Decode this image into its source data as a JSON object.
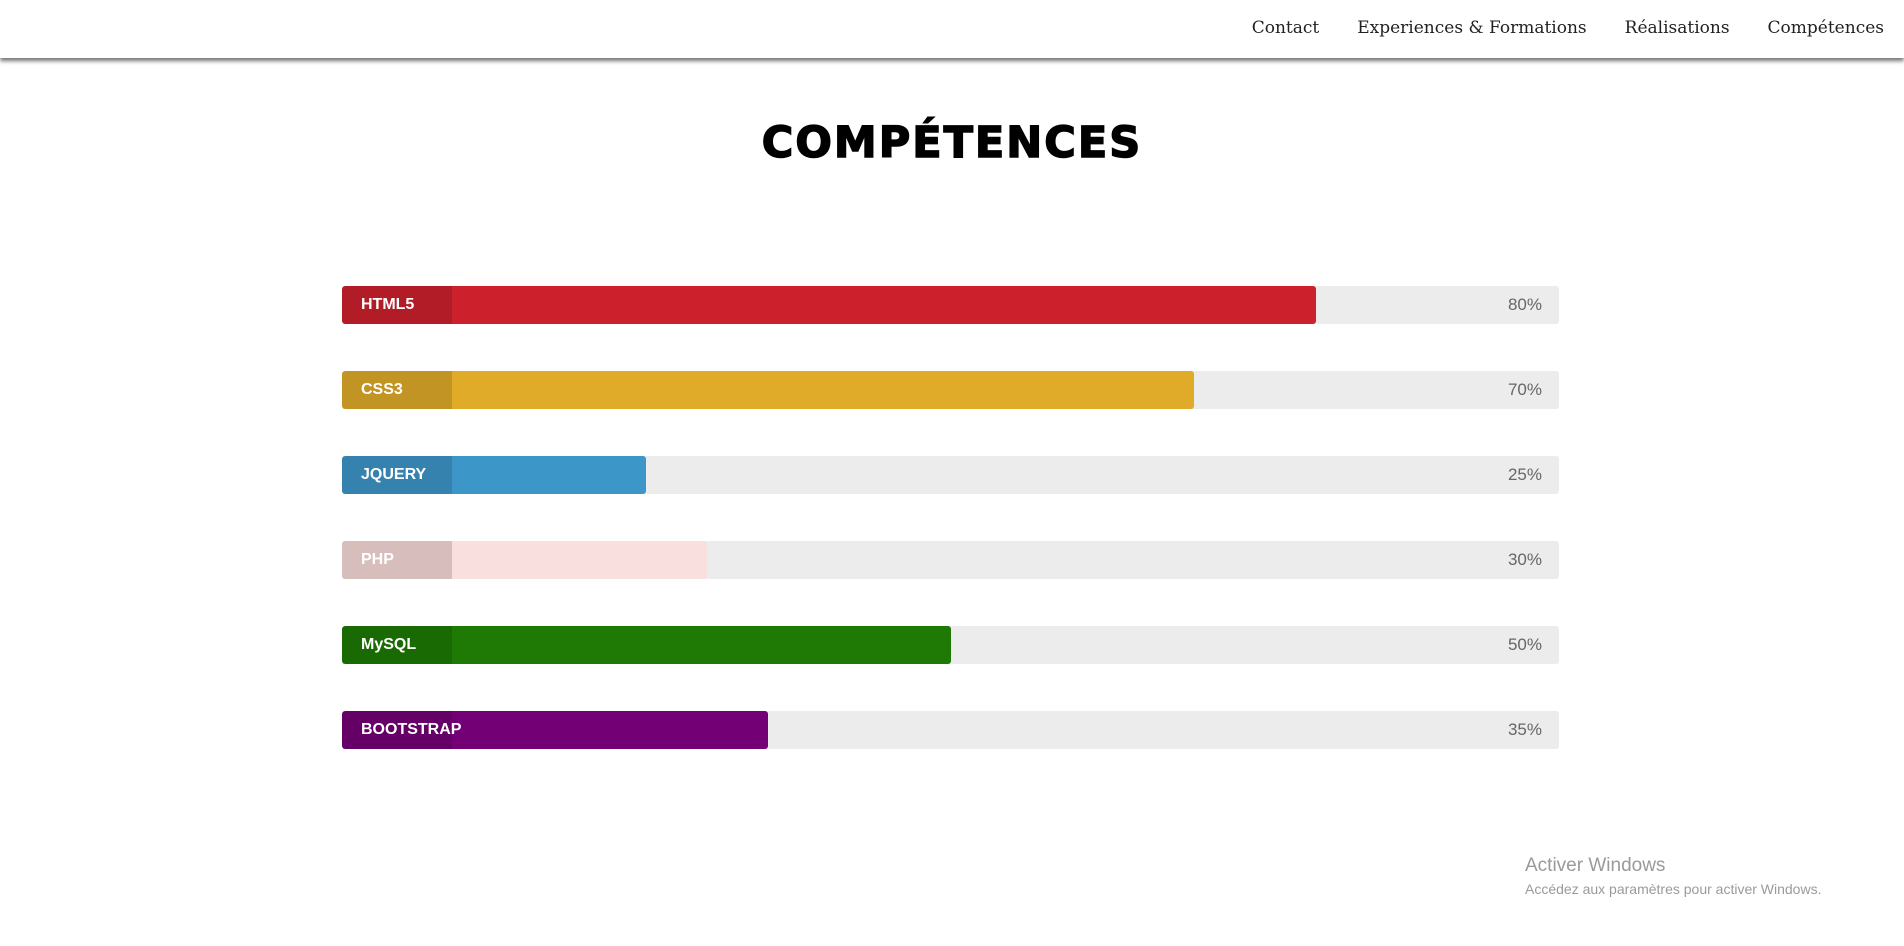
{
  "nav": {
    "links": [
      "Contact",
      "Experiences & Formations",
      "Réalisations",
      "Compétences"
    ]
  },
  "page": {
    "title": "COMPÉTENCES"
  },
  "skills": [
    {
      "name": "HTML5",
      "percent_label": "80%",
      "level": 0.8,
      "color": "#cc212c"
    },
    {
      "name": "CSS3",
      "percent_label": "70%",
      "level": 0.7,
      "color": "#dfab29"
    },
    {
      "name": "JQUERY",
      "percent_label": "25%",
      "level": 0.25,
      "color": "#3d96c8"
    },
    {
      "name": "PHP",
      "percent_label": "30%",
      "level": 0.3,
      "color": "#f9dfdd"
    },
    {
      "name": "MySQL",
      "percent_label": "50%",
      "level": 0.5,
      "color": "#1e7a04"
    },
    {
      "name": "BOOTSTRAP",
      "percent_label": "35%",
      "level": 0.35,
      "color": "#740076"
    }
  ],
  "windows_activation": {
    "title": "Activer Windows",
    "subtitle": "Accédez aux paramètres pour activer Windows."
  }
}
